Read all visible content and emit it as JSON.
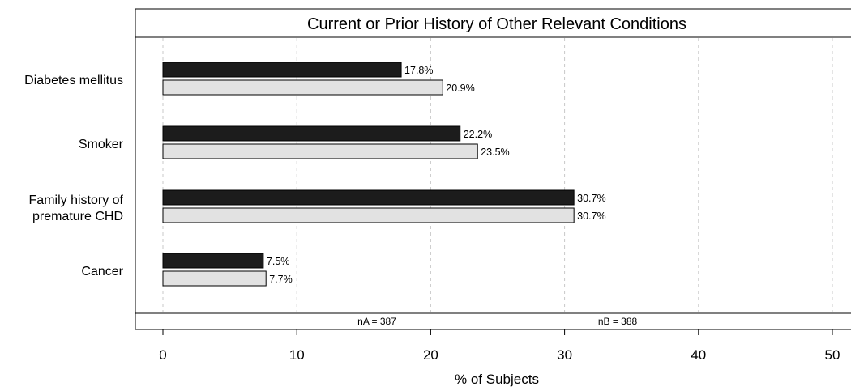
{
  "chart_data": {
    "type": "bar",
    "orientation": "horizontal",
    "title": "Current or Prior History of Other Relevant Conditions",
    "xlabel": "% of Subjects",
    "xlim": [
      0,
      50
    ],
    "xticks": [
      0,
      10,
      20,
      30,
      40,
      50
    ],
    "grid": true,
    "categories": [
      [
        "Diabetes mellitus"
      ],
      [
        "Smoker"
      ],
      [
        "Family history of",
        "premature CHD"
      ],
      [
        "Cancer"
      ]
    ],
    "series": [
      {
        "color": "#1c1c1c",
        "values": [
          17.8,
          22.2,
          30.7,
          7.5
        ],
        "labels": [
          "17.8%",
          "22.2%",
          "30.7%",
          "7.5%"
        ]
      },
      {
        "color": "#e2e2e2",
        "values": [
          20.9,
          23.5,
          30.7,
          7.7
        ],
        "labels": [
          "20.9%",
          "23.5%",
          "30.7%",
          "7.7%"
        ]
      }
    ],
    "counts": [
      "nA = 387",
      "nB = 388"
    ]
  }
}
